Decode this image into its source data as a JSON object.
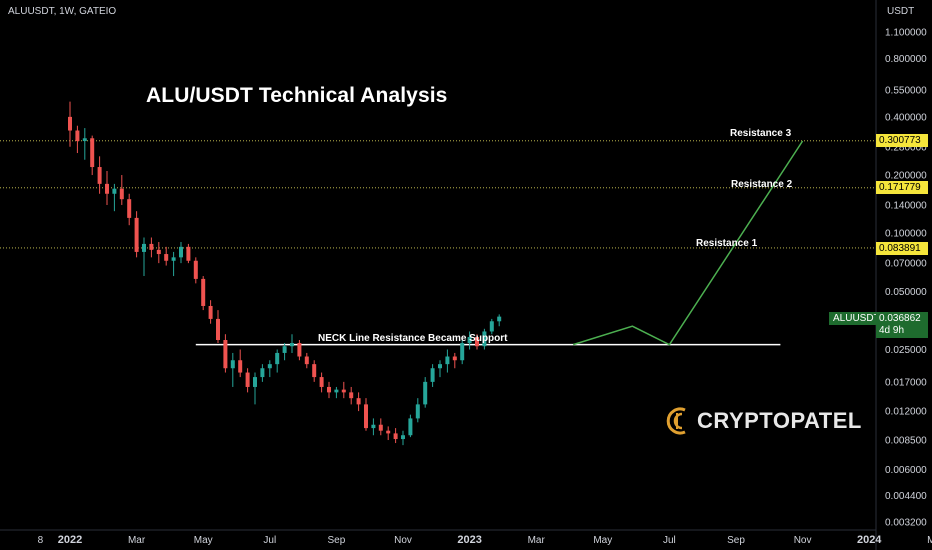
{
  "header": {
    "symbol": "ALUUSDT, 1W, GATEIO",
    "unit": "USDT"
  },
  "title": "ALU/USDT Technical Analysis",
  "annotations": {
    "resistance3": "Resistance 3",
    "resistance2": "Resistance 2",
    "resistance1": "Resistance 1",
    "neckline": "NECK Line Resistance Became Support"
  },
  "price_tags": {
    "r3": "0.300773",
    "r2": "0.171779",
    "r1": "0.083891",
    "symbol": "ALUUSDT",
    "last": "0.036862",
    "countdown": "4d 9h"
  },
  "logo": {
    "text": "CRYPTOPATEL"
  },
  "colors": {
    "up": "#26a69a",
    "down": "#ef5350",
    "projection": "#4caf50",
    "tag": "#f5e53b",
    "neckline": "#ffffff"
  },
  "chart_data": {
    "type": "candlestick",
    "y_scale": "log",
    "ylim": [
      0.0032,
      1.1
    ],
    "y_ticks": [
      "1.100000",
      "0.800000",
      "0.550000",
      "0.400000",
      "0.280000",
      "0.200000",
      "0.140000",
      "0.100000",
      "0.070000",
      "0.050000",
      "0.025000",
      "0.017000",
      "0.012000",
      "0.008500",
      "0.006000",
      "0.004400",
      "0.003200"
    ],
    "y_tick_values": [
      1.1,
      0.8,
      0.55,
      0.4,
      0.28,
      0.2,
      0.14,
      0.1,
      0.07,
      0.05,
      0.025,
      0.017,
      0.012,
      0.0085,
      0.006,
      0.0044,
      0.0032
    ],
    "x_ticks": [
      "8",
      "2022",
      "Mar",
      "May",
      "Jul",
      "Sep",
      "Nov",
      "2023",
      "Mar",
      "May",
      "Jul",
      "Sep",
      "Nov",
      "2024",
      "Mar"
    ],
    "x_tick_index": [
      -4,
      0,
      9,
      18,
      27,
      36,
      45,
      54,
      63,
      72,
      81,
      90,
      99,
      108,
      117
    ],
    "levels": [
      {
        "name": "Resistance 3",
        "value": 0.300773
      },
      {
        "name": "Resistance 2",
        "value": 0.171779
      },
      {
        "name": "Resistance 1",
        "value": 0.083891
      }
    ],
    "neckline": {
      "value": 0.0265,
      "from_index": 17,
      "to_index": 96
    },
    "projection": [
      [
        68,
        0.0265
      ],
      [
        76,
        0.033
      ],
      [
        81,
        0.0265
      ],
      [
        99,
        0.3
      ]
    ],
    "candles": [
      [
        0.4,
        0.48,
        0.28,
        0.34
      ],
      [
        0.34,
        0.36,
        0.26,
        0.3
      ],
      [
        0.3,
        0.35,
        0.24,
        0.31
      ],
      [
        0.31,
        0.32,
        0.2,
        0.22
      ],
      [
        0.22,
        0.25,
        0.16,
        0.18
      ],
      [
        0.18,
        0.21,
        0.14,
        0.16
      ],
      [
        0.16,
        0.18,
        0.13,
        0.17
      ],
      [
        0.17,
        0.2,
        0.14,
        0.15
      ],
      [
        0.15,
        0.16,
        0.11,
        0.12
      ],
      [
        0.12,
        0.13,
        0.075,
        0.08
      ],
      [
        0.08,
        0.095,
        0.06,
        0.088
      ],
      [
        0.088,
        0.095,
        0.075,
        0.082
      ],
      [
        0.082,
        0.09,
        0.07,
        0.078
      ],
      [
        0.078,
        0.085,
        0.068,
        0.072
      ],
      [
        0.072,
        0.08,
        0.06,
        0.075
      ],
      [
        0.075,
        0.09,
        0.07,
        0.085
      ],
      [
        0.085,
        0.088,
        0.07,
        0.072
      ],
      [
        0.072,
        0.075,
        0.055,
        0.058
      ],
      [
        0.058,
        0.06,
        0.04,
        0.042
      ],
      [
        0.042,
        0.045,
        0.034,
        0.036
      ],
      [
        0.036,
        0.04,
        0.027,
        0.028
      ],
      [
        0.028,
        0.03,
        0.019,
        0.02
      ],
      [
        0.02,
        0.024,
        0.016,
        0.022
      ],
      [
        0.022,
        0.025,
        0.018,
        0.019
      ],
      [
        0.019,
        0.02,
        0.015,
        0.016
      ],
      [
        0.016,
        0.019,
        0.013,
        0.018
      ],
      [
        0.018,
        0.021,
        0.017,
        0.02
      ],
      [
        0.02,
        0.022,
        0.018,
        0.021
      ],
      [
        0.021,
        0.025,
        0.019,
        0.024
      ],
      [
        0.024,
        0.027,
        0.022,
        0.026
      ],
      [
        0.026,
        0.03,
        0.024,
        0.027
      ],
      [
        0.027,
        0.028,
        0.022,
        0.023
      ],
      [
        0.023,
        0.024,
        0.02,
        0.021
      ],
      [
        0.021,
        0.022,
        0.017,
        0.018
      ],
      [
        0.018,
        0.019,
        0.015,
        0.016
      ],
      [
        0.016,
        0.017,
        0.014,
        0.015
      ],
      [
        0.015,
        0.016,
        0.014,
        0.0155
      ],
      [
        0.0155,
        0.017,
        0.014,
        0.015
      ],
      [
        0.015,
        0.016,
        0.013,
        0.014
      ],
      [
        0.014,
        0.015,
        0.012,
        0.013
      ],
      [
        0.013,
        0.014,
        0.0095,
        0.0098
      ],
      [
        0.0098,
        0.011,
        0.009,
        0.0102
      ],
      [
        0.0102,
        0.011,
        0.009,
        0.0095
      ],
      [
        0.0095,
        0.01,
        0.0085,
        0.0092
      ],
      [
        0.0092,
        0.0098,
        0.0082,
        0.0086
      ],
      [
        0.0086,
        0.0095,
        0.008,
        0.009
      ],
      [
        0.009,
        0.0115,
        0.0088,
        0.011
      ],
      [
        0.011,
        0.014,
        0.0105,
        0.013
      ],
      [
        0.013,
        0.018,
        0.0125,
        0.017
      ],
      [
        0.017,
        0.021,
        0.016,
        0.02
      ],
      [
        0.02,
        0.022,
        0.018,
        0.021
      ],
      [
        0.021,
        0.025,
        0.019,
        0.023
      ],
      [
        0.023,
        0.024,
        0.02,
        0.022
      ],
      [
        0.022,
        0.028,
        0.021,
        0.027
      ],
      [
        0.027,
        0.031,
        0.025,
        0.029
      ],
      [
        0.029,
        0.03,
        0.025,
        0.026
      ],
      [
        0.026,
        0.032,
        0.025,
        0.031
      ],
      [
        0.031,
        0.036,
        0.03,
        0.035
      ],
      [
        0.035,
        0.038,
        0.033,
        0.037
      ]
    ]
  }
}
